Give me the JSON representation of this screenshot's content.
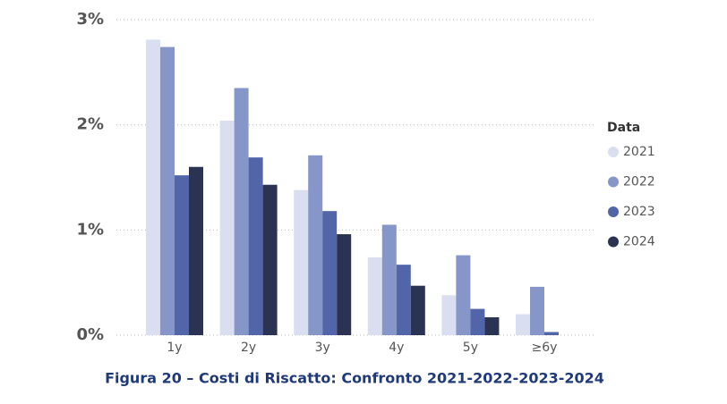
{
  "chart_data": {
    "type": "bar",
    "title": "Figura 20 – Costi di Riscatto: Confronto 2021-2022-2023-2024",
    "categories": [
      "1y",
      "2y",
      "3y",
      "4y",
      "5y",
      "≥6y"
    ],
    "series": [
      {
        "name": "2021",
        "color": "#d9dff0",
        "values": [
          2.81,
          2.04,
          1.38,
          0.74,
          0.38,
          0.2
        ]
      },
      {
        "name": "2022",
        "color": "#8796c8",
        "values": [
          2.74,
          2.35,
          1.71,
          1.05,
          0.76,
          0.46
        ]
      },
      {
        "name": "2023",
        "color": "#5165a8",
        "values": [
          1.52,
          1.69,
          1.18,
          0.67,
          0.25,
          0.03
        ]
      },
      {
        "name": "2024",
        "color": "#2a3352",
        "values": [
          1.6,
          1.43,
          0.96,
          0.47,
          0.17,
          null
        ]
      }
    ],
    "legend_title": "Data",
    "legend": "right",
    "ylim": [
      0,
      3
    ],
    "yticks": [
      {
        "value": 0,
        "label": "0%"
      },
      {
        "value": 1,
        "label": "1%"
      },
      {
        "value": 2,
        "label": "2%"
      },
      {
        "value": 3,
        "label": "3%"
      }
    ],
    "grid": true
  }
}
